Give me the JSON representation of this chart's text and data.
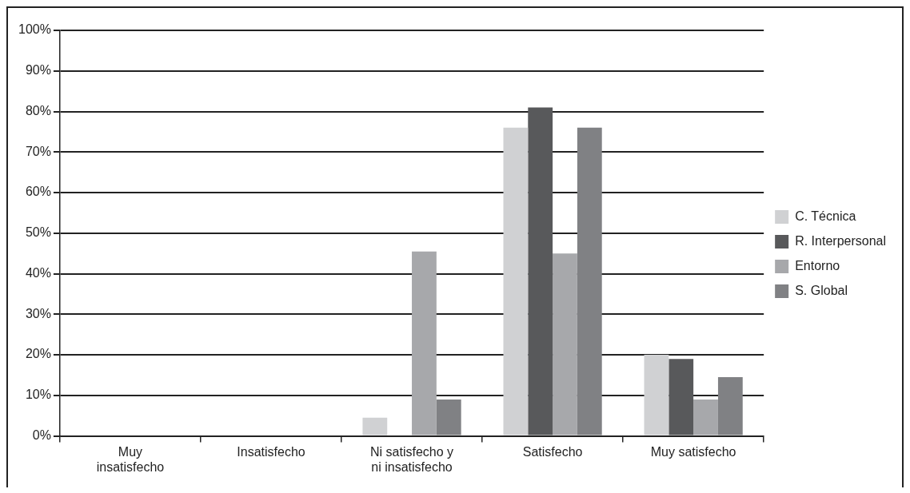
{
  "chart_data": {
    "type": "bar",
    "categories": [
      "Muy insatisfecho",
      "Insatisfecho",
      "Ni satisfecho y ni insatisfecho",
      "Satisfecho",
      "Muy satisfecho"
    ],
    "series": [
      {
        "name": "C. Técnica",
        "color": "#d0d1d3",
        "values": [
          0,
          0,
          4.5,
          76,
          20
        ]
      },
      {
        "name": "R. Interpersonal",
        "color": "#58595b",
        "values": [
          0,
          0,
          0,
          81,
          19
        ]
      },
      {
        "name": "Entorno",
        "color": "#a7a8ab",
        "values": [
          0,
          0,
          45.5,
          45,
          9
        ]
      },
      {
        "name": "S. Global",
        "color": "#808184",
        "values": [
          0,
          0,
          9,
          76,
          14.5
        ]
      }
    ],
    "ylim": [
      0,
      100
    ],
    "yticks": [
      {
        "value": 0,
        "label": "0%"
      },
      {
        "value": 10,
        "label": "10%"
      },
      {
        "value": 20,
        "label": "20%"
      },
      {
        "value": 30,
        "label": "30%"
      },
      {
        "value": 40,
        "label": "40%"
      },
      {
        "value": 50,
        "label": "50%"
      },
      {
        "value": 60,
        "label": "60%"
      },
      {
        "value": 70,
        "label": "70%"
      },
      {
        "value": 80,
        "label": "80%"
      },
      {
        "value": 90,
        "label": "90%"
      },
      {
        "value": 100,
        "label": "100%"
      }
    ],
    "grid": "y",
    "legend": "right"
  }
}
